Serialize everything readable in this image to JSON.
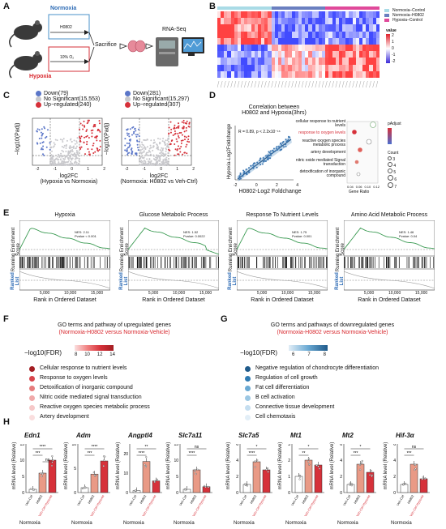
{
  "panel_letters": [
    "A",
    "B",
    "C",
    "D",
    "E",
    "F",
    "G",
    "H"
  ],
  "panel_a": {
    "normoxia": "Normoxia",
    "hypoxia": "Hypoxia",
    "drug": "H0802",
    "o2": "10% O₂",
    "sacrifice": "Sacrifice",
    "rnaseq": "RNA-Seq"
  },
  "panel_b": {
    "legend": [
      {
        "label": "Normoxia–Control",
        "color": "#a9dbe6"
      },
      {
        "label": "Normoxia–H0802",
        "color": "#6a7fc0"
      },
      {
        "label": "Hypoxia–Control",
        "color": "#e0499a"
      }
    ],
    "value_title": "value",
    "value_ticks": [
      "2",
      "1",
      "0",
      "-1",
      "-2"
    ]
  },
  "panel_c": {
    "left": {
      "legend": [
        "Down(79)",
        "No Significant(15,553)",
        "Up−regulated(240)"
      ],
      "xlabel": "log2FC",
      "xsub": "(Hypoxia vs Normoxia)",
      "ylabel": "−log10(Padj)",
      "xticks": [
        "-2",
        "-1",
        "0",
        "1",
        "2"
      ]
    },
    "right": {
      "legend": [
        "Down(281)",
        "No Significant(15,297)",
        "Up−regulated(307)"
      ],
      "xlabel": "log2FC",
      "xsub": "(Normoxia: H0802  vs Veh-Ctrl)",
      "ylabel": "−log10(Padj)",
      "xticks": [
        "-2",
        "-1",
        "0",
        "1",
        "2"
      ]
    },
    "colors": {
      "down": "#5b76c8",
      "ns": "#c8c8cc",
      "up": "#d6313a"
    }
  },
  "panel_d": {
    "title1": "Correlation between",
    "title2": "H0802 and Hypoxia(3hrs)",
    "stat": "R = 0.89, p < 2.2x10⁻¹⁶",
    "xlabel": "H0802-Log2 Foldchange",
    "ylabel": "Hypoxia-Log2Foldchange",
    "xticks": [
      "-2",
      "0",
      "2",
      "4"
    ],
    "terms": [
      "cellular response to nutrient levels",
      "response to oxygen levels",
      "reactive oxygen species metabolic process",
      "artery development",
      "nitric oxide mediated Signal transduction",
      "detoxification of inorganic compound"
    ],
    "padj_title": "pAdjust",
    "count_title": "Count",
    "count_ticks": [
      "3",
      "4",
      "5",
      "6",
      "7"
    ],
    "gene_ratio": "Gene Ratio",
    "ratio_ticks": [
      "0.04",
      "0.06",
      "0.10",
      "0.12"
    ]
  },
  "panel_e": {
    "plots": [
      {
        "title": "Hypoxia",
        "nes": "NES: 2.11",
        "pvalue": "Pvalue < 0.001"
      },
      {
        "title": "Glucose Metabolic Process",
        "nes": "NES: 1.52",
        "pvalue": "Pvalue: 0.0022"
      },
      {
        "title": "Response To Nutrient Levels",
        "nes": "NES: 1.75",
        "pvalue": "Pvalue: 0.001"
      },
      {
        "title": "Amino Acid Metabolic Process",
        "nes": "NES: 1.46",
        "pvalue": "Pvalue: 0.04"
      }
    ],
    "ylabel1": "Running Enrichment",
    "ylabel2": "Score",
    "ranked1": "Ranked",
    "ranked2": "List",
    "xlabel": "Rank in Ordered Dataset",
    "xticks": [
      "5,000",
      "10,000",
      "15,000"
    ]
  },
  "panel_f": {
    "title": "GO terms and pathway of upregulated genes",
    "subtitle": "(Normoxia-H0802 versus Normoxia-Vehicle)",
    "fdr_label": "−log10(FDR)",
    "fdr_ticks": [
      "8",
      "10",
      "12",
      "14"
    ],
    "terms": [
      {
        "label": "Cellular response to nutrient levels",
        "color": "#a31d22"
      },
      {
        "label": "Response to oxygen levels",
        "color": "#d8454b"
      },
      {
        "label": "Detoxification of inorganic compound",
        "color": "#e67c7c"
      },
      {
        "label": "Nitric oxide mediated signal transduction",
        "color": "#f0a9a9"
      },
      {
        "label": "Reactive oxygen species metabolic process",
        "color": "#f6c8c8"
      },
      {
        "label": "Artery development",
        "color": "#fadede"
      }
    ]
  },
  "panel_g": {
    "title": "GO terms and pathways of downregulated genes",
    "subtitle": "(Normoxia-H0802 versus Normoxia-Vehicle)",
    "fdr_label": "−log10(FDR)",
    "fdr_ticks": [
      "6",
      "7",
      "8"
    ],
    "terms": [
      {
        "label": "Negative regulation of chondrocyte differentiation",
        "color": "#1f5a8a"
      },
      {
        "label": "Regulation of cell growth",
        "color": "#2f7bb2"
      },
      {
        "label": "Fat cell differentiation",
        "color": "#6aa9d3"
      },
      {
        "label": "B cell activation",
        "color": "#9cc7e3"
      },
      {
        "label": "Connective tissue development",
        "color": "#c5def0"
      },
      {
        "label": "Cell chemotaxis",
        "color": "#e2eef7"
      }
    ]
  },
  "panel_h": {
    "ylabel": "mRNA level (Relative)",
    "normoxia": "Normoxia",
    "groups": [
      "Veh-Ctrl",
      "H0802",
      "Veh-Ctrl Hypoxia"
    ],
    "genes": [
      {
        "name": "Edn1",
        "values": [
          1.0,
          6.0,
          10.0
        ],
        "ymax": 15,
        "ticks": [
          "0",
          "5",
          "10",
          "15"
        ],
        "sig": [
          "***",
          "****",
          "ns"
        ]
      },
      {
        "name": "Adm",
        "values": [
          1.0,
          3.8,
          6.5
        ],
        "ymax": 10,
        "ticks": [
          "0",
          "5",
          "10"
        ],
        "sig": [
          "***",
          "****",
          ""
        ]
      },
      {
        "name": "Angptl4",
        "values": [
          1.0,
          16.0,
          6.0
        ],
        "ymax": 25,
        "ticks": [
          "0",
          "10",
          "20"
        ],
        "sig": [
          "****",
          "**",
          ""
        ]
      },
      {
        "name": "Slc7a11",
        "values": [
          1.0,
          7.0,
          1.8
        ],
        "ymax": 15,
        "ticks": [
          "0",
          "5",
          "10",
          "15"
        ],
        "sig": [
          "****",
          "ns",
          ""
        ]
      },
      {
        "name": "Slc7a5",
        "values": [
          1.0,
          3.8,
          2.8
        ],
        "ymax": 6,
        "ticks": [
          "0",
          "2",
          "4",
          "6"
        ],
        "sig": [
          "****",
          "*",
          ""
        ]
      },
      {
        "name": "Mt1",
        "values": [
          1.0,
          2.0,
          1.7
        ],
        "ymax": 3,
        "ticks": [
          "0",
          "1",
          "2",
          "3"
        ],
        "sig": [
          "**",
          "*",
          ""
        ]
      },
      {
        "name": "Mt2",
        "values": [
          1.0,
          3.5,
          2.5
        ],
        "ymax": 6,
        "ticks": [
          "0",
          "2",
          "4",
          "6"
        ],
        "sig": [
          "***",
          "*",
          ""
        ]
      },
      {
        "name": "Hif-3α",
        "values": [
          1.0,
          3.5,
          1.7
        ],
        "ymax": 6,
        "ticks": [
          "0",
          "2",
          "4",
          "6"
        ],
        "sig": [
          "***",
          "ns",
          ""
        ]
      }
    ]
  }
}
